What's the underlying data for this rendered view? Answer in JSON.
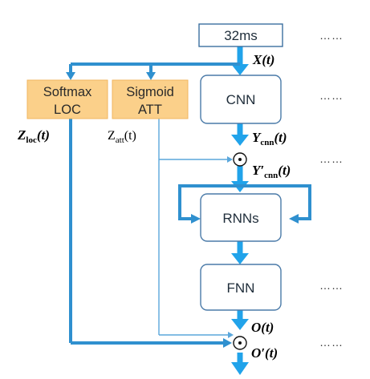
{
  "diagram": {
    "input_box": {
      "label": "32ms"
    },
    "boxes": {
      "cnn": {
        "label": "CNN"
      },
      "rnns": {
        "label": "RNNs"
      },
      "fnn": {
        "label": "FNN"
      },
      "softmax": {
        "line1": "Softmax",
        "line2": "LOC"
      },
      "sigmoid": {
        "line1": "Sigmoid",
        "line2": "ATT"
      }
    },
    "labels": {
      "x": "X(t)",
      "y_cnn": "Y",
      "y_cnn_sub": "cnn",
      "y_cnn_arg": "(t)",
      "y_prime": "Y′",
      "y_prime_sub": "cnn",
      "y_prime_arg": "(t)",
      "z_loc": "Z",
      "z_loc_sub": "loc",
      "z_loc_arg": "(t)",
      "z_att": "Z",
      "z_att_sub": "att",
      "z_att_arg": "(t)",
      "o": "O(t)",
      "o_prime": "O′(t)"
    },
    "odot_symbol": "⊙",
    "ellipsis": "……",
    "colors": {
      "arrow": "#3aa9e8",
      "arrow_dark": "#2e8fd0",
      "box_border": "#4a7aa8",
      "orange_fill": "#fbd08a",
      "orange_border": "#f0b660"
    }
  }
}
